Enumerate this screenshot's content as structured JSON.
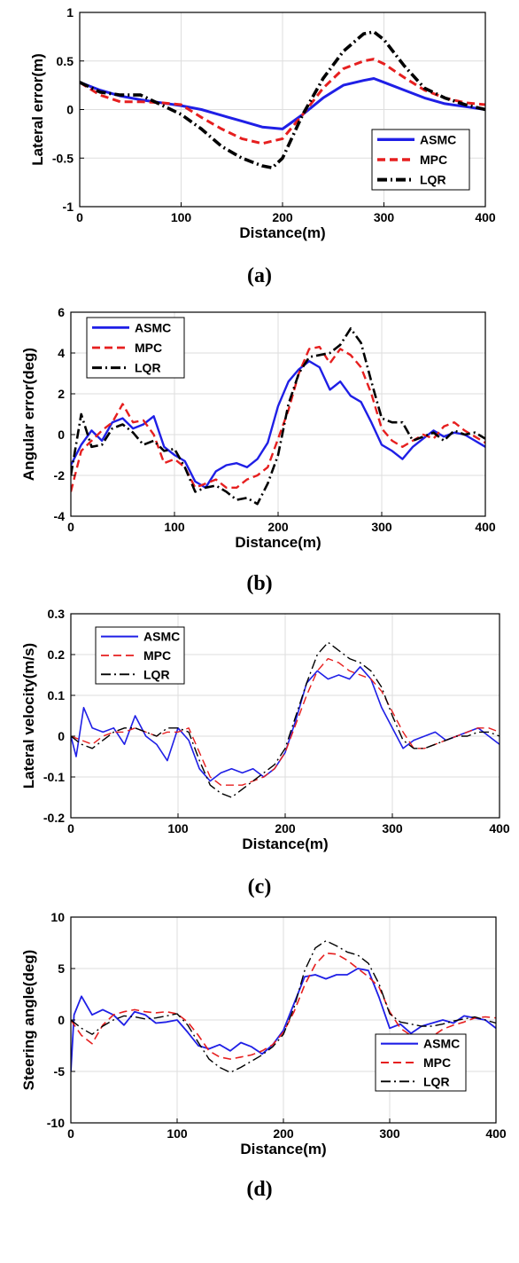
{
  "chart_data": [
    {
      "type": "line",
      "caption": "(a)",
      "xlabel": "Distance(m)",
      "ylabel": "Lateral error(m)",
      "xlim": [
        0,
        400
      ],
      "ylim": [
        -1,
        1
      ],
      "xticks": [
        "0",
        "100",
        "200",
        "300",
        "400"
      ],
      "yticks": [
        "-1",
        "-0.5",
        "0",
        "0.5",
        "1"
      ],
      "xtick_values": [
        0,
        100,
        200,
        300,
        400
      ],
      "ytick_values": [
        -1,
        -0.5,
        0,
        0.5,
        1
      ],
      "legend_position": "bottom-right",
      "series": [
        {
          "name": "ASMC",
          "color": "#1f1fe6",
          "dash": "solid",
          "x": [
            0,
            20,
            40,
            60,
            80,
            100,
            120,
            140,
            160,
            180,
            200,
            220,
            240,
            260,
            280,
            290,
            300,
            320,
            340,
            360,
            380,
            400
          ],
          "y": [
            0.28,
            0.2,
            0.14,
            0.1,
            0.07,
            0.04,
            0.0,
            -0.06,
            -0.12,
            -0.18,
            -0.2,
            -0.05,
            0.12,
            0.25,
            0.3,
            0.32,
            0.28,
            0.2,
            0.12,
            0.06,
            0.03,
            0.0
          ]
        },
        {
          "name": "MPC",
          "color": "#e61f1f",
          "dash": "dashed",
          "x": [
            0,
            20,
            40,
            60,
            80,
            100,
            120,
            140,
            160,
            180,
            200,
            220,
            240,
            260,
            280,
            290,
            300,
            320,
            340,
            360,
            380,
            400
          ],
          "y": [
            0.28,
            0.15,
            0.08,
            0.08,
            0.07,
            0.05,
            -0.08,
            -0.2,
            -0.3,
            -0.35,
            -0.3,
            -0.05,
            0.22,
            0.42,
            0.5,
            0.52,
            0.47,
            0.33,
            0.2,
            0.12,
            0.07,
            0.05
          ]
        },
        {
          "name": "LQR",
          "color": "#000000",
          "dash": "dashdot",
          "x": [
            0,
            20,
            40,
            60,
            80,
            100,
            120,
            140,
            160,
            180,
            190,
            200,
            220,
            240,
            260,
            280,
            290,
            300,
            320,
            340,
            360,
            380,
            400
          ],
          "y": [
            0.28,
            0.18,
            0.15,
            0.15,
            0.05,
            -0.05,
            -0.2,
            -0.38,
            -0.5,
            -0.58,
            -0.6,
            -0.5,
            -0.05,
            0.32,
            0.6,
            0.78,
            0.8,
            0.72,
            0.45,
            0.22,
            0.12,
            0.05,
            0.0
          ]
        }
      ]
    },
    {
      "type": "line",
      "caption": "(b)",
      "xlabel": "Distance(m)",
      "ylabel": "Angular error(deg)",
      "xlim": [
        0,
        400
      ],
      "ylim": [
        -4,
        6
      ],
      "xticks": [
        "0",
        "100",
        "200",
        "300",
        "400"
      ],
      "yticks": [
        "-4",
        "-2",
        "0",
        "2",
        "4",
        "6"
      ],
      "xtick_values": [
        0,
        100,
        200,
        300,
        400
      ],
      "ytick_values": [
        -4,
        -2,
        0,
        2,
        4,
        6
      ],
      "legend_position": "top-left",
      "series": [
        {
          "name": "ASMC",
          "color": "#1f1fe6",
          "dash": "solid",
          "x": [
            0,
            10,
            20,
            30,
            40,
            50,
            60,
            70,
            80,
            90,
            100,
            110,
            120,
            130,
            140,
            150,
            160,
            170,
            180,
            190,
            200,
            210,
            220,
            230,
            240,
            250,
            260,
            270,
            280,
            290,
            300,
            310,
            320,
            330,
            340,
            350,
            360,
            370,
            380,
            390,
            400
          ],
          "y": [
            -1.5,
            -0.5,
            0.2,
            -0.3,
            0.6,
            0.8,
            0.3,
            0.5,
            0.9,
            -0.6,
            -1.0,
            -1.3,
            -2.3,
            -2.6,
            -1.8,
            -1.5,
            -1.4,
            -1.6,
            -1.2,
            -0.4,
            1.4,
            2.6,
            3.2,
            3.6,
            3.3,
            2.2,
            2.6,
            1.9,
            1.6,
            0.6,
            -0.5,
            -0.8,
            -1.2,
            -0.6,
            -0.2,
            0.2,
            -0.1,
            0.1,
            0.0,
            -0.3,
            -0.6
          ]
        },
        {
          "name": "MPC",
          "color": "#e61f1f",
          "dash": "dashed",
          "x": [
            0,
            10,
            20,
            30,
            40,
            50,
            60,
            70,
            80,
            90,
            100,
            110,
            120,
            130,
            140,
            150,
            160,
            170,
            180,
            190,
            200,
            210,
            220,
            230,
            240,
            250,
            260,
            270,
            280,
            290,
            300,
            310,
            320,
            330,
            340,
            350,
            360,
            370,
            380,
            390,
            400
          ],
          "y": [
            -2.8,
            -0.8,
            -0.3,
            0.2,
            0.6,
            1.5,
            0.6,
            0.7,
            0.0,
            -1.4,
            -1.2,
            -1.6,
            -2.6,
            -2.4,
            -2.2,
            -2.6,
            -2.6,
            -2.2,
            -2.0,
            -1.6,
            -0.2,
            1.2,
            3.0,
            4.2,
            4.3,
            3.5,
            4.2,
            3.9,
            3.3,
            2.0,
            0.3,
            -0.3,
            -0.6,
            -0.3,
            0.0,
            -0.2,
            0.4,
            0.6,
            0.2,
            -0.1,
            -0.4
          ]
        },
        {
          "name": "LQR",
          "color": "#000000",
          "dash": "dashdot",
          "x": [
            0,
            10,
            20,
            30,
            40,
            50,
            60,
            70,
            80,
            90,
            100,
            110,
            120,
            130,
            140,
            150,
            160,
            170,
            180,
            190,
            200,
            210,
            220,
            230,
            240,
            250,
            260,
            270,
            280,
            290,
            300,
            310,
            320,
            330,
            340,
            350,
            360,
            370,
            380,
            390,
            400
          ],
          "y": [
            -2.0,
            1.0,
            -0.6,
            -0.5,
            0.3,
            0.5,
            0.1,
            -0.5,
            -0.3,
            -0.8,
            -0.7,
            -1.6,
            -2.8,
            -2.6,
            -2.5,
            -2.8,
            -3.2,
            -3.1,
            -3.4,
            -2.4,
            -1.0,
            1.5,
            3.0,
            3.8,
            3.9,
            4.0,
            4.4,
            5.2,
            4.5,
            2.6,
            0.8,
            0.6,
            0.6,
            -0.3,
            -0.1,
            0.1,
            -0.3,
            0.2,
            0.0,
            0.1,
            -0.2
          ]
        }
      ]
    },
    {
      "type": "line",
      "caption": "(c)",
      "xlabel": "Distance(m)",
      "ylabel": "Lateral velocity(m/s)",
      "xlim": [
        0,
        400
      ],
      "ylim": [
        -0.2,
        0.3
      ],
      "xticks": [
        "0",
        "100",
        "200",
        "300",
        "400"
      ],
      "yticks": [
        "-0.2",
        "-0.1",
        "0",
        "0.1",
        "0.2",
        "0.3"
      ],
      "xtick_values": [
        0,
        100,
        200,
        300,
        400
      ],
      "ytick_values": [
        -0.2,
        -0.1,
        0,
        0.1,
        0.2,
        0.3
      ],
      "legend_position": "top-left",
      "series": [
        {
          "name": "ASMC",
          "color": "#1f1fe6",
          "dash": "solid",
          "x": [
            0,
            5,
            12,
            20,
            30,
            40,
            50,
            60,
            70,
            80,
            90,
            100,
            110,
            120,
            130,
            140,
            150,
            160,
            170,
            180,
            190,
            200,
            210,
            220,
            230,
            240,
            250,
            260,
            270,
            280,
            290,
            300,
            310,
            320,
            330,
            340,
            350,
            360,
            370,
            380,
            390,
            400
          ],
          "y": [
            0.0,
            -0.05,
            0.07,
            0.02,
            0.01,
            0.02,
            -0.02,
            0.05,
            0.0,
            -0.02,
            -0.06,
            0.02,
            -0.01,
            -0.08,
            -0.11,
            -0.09,
            -0.08,
            -0.09,
            -0.08,
            -0.1,
            -0.08,
            -0.04,
            0.04,
            0.13,
            0.16,
            0.14,
            0.15,
            0.14,
            0.17,
            0.14,
            0.07,
            0.02,
            -0.03,
            -0.01,
            0.0,
            0.01,
            -0.01,
            0.0,
            0.01,
            0.02,
            0.0,
            -0.02
          ]
        },
        {
          "name": "MPC",
          "color": "#e61f1f",
          "dash": "dashed",
          "x": [
            0,
            10,
            20,
            30,
            40,
            50,
            60,
            70,
            80,
            90,
            100,
            110,
            120,
            130,
            140,
            150,
            160,
            170,
            180,
            190,
            200,
            210,
            220,
            230,
            240,
            250,
            260,
            270,
            280,
            290,
            300,
            310,
            320,
            330,
            340,
            350,
            360,
            370,
            380,
            390,
            400
          ],
          "y": [
            0.0,
            -0.01,
            -0.02,
            0.0,
            0.01,
            0.01,
            0.02,
            0.01,
            0.0,
            0.01,
            0.01,
            0.02,
            -0.04,
            -0.1,
            -0.12,
            -0.12,
            -0.12,
            -0.11,
            -0.1,
            -0.08,
            -0.04,
            0.03,
            0.1,
            0.16,
            0.19,
            0.18,
            0.16,
            0.15,
            0.14,
            0.11,
            0.06,
            0.01,
            -0.03,
            -0.03,
            -0.02,
            -0.01,
            0.0,
            0.01,
            0.02,
            0.02,
            0.01
          ]
        },
        {
          "name": "LQR",
          "color": "#000000",
          "dash": "dashdot",
          "x": [
            0,
            10,
            20,
            30,
            40,
            50,
            60,
            70,
            80,
            90,
            100,
            110,
            120,
            130,
            140,
            150,
            160,
            170,
            180,
            190,
            200,
            210,
            220,
            230,
            240,
            250,
            260,
            270,
            280,
            290,
            300,
            310,
            320,
            330,
            340,
            350,
            360,
            370,
            380,
            390,
            400
          ],
          "y": [
            0.0,
            -0.02,
            -0.03,
            -0.01,
            0.01,
            0.02,
            0.02,
            0.01,
            0.0,
            0.02,
            0.02,
            0.01,
            -0.06,
            -0.12,
            -0.14,
            -0.15,
            -0.13,
            -0.11,
            -0.09,
            -0.07,
            -0.03,
            0.05,
            0.13,
            0.2,
            0.23,
            0.21,
            0.19,
            0.18,
            0.16,
            0.12,
            0.05,
            -0.01,
            -0.03,
            -0.03,
            -0.02,
            -0.01,
            0.0,
            0.0,
            0.01,
            0.01,
            0.0
          ]
        }
      ]
    },
    {
      "type": "line",
      "caption": "(d)",
      "xlabel": "Distance(m)",
      "ylabel": "Steering angle(deg)",
      "xlim": [
        0,
        400
      ],
      "ylim": [
        -10,
        10
      ],
      "xticks": [
        "0",
        "100",
        "200",
        "300",
        "400"
      ],
      "yticks": [
        "-10",
        "-5",
        "0",
        "5",
        "10"
      ],
      "xtick_values": [
        0,
        100,
        200,
        300,
        400
      ],
      "ytick_values": [
        -10,
        -5,
        0,
        5,
        10
      ],
      "legend_position": "bottom-right",
      "series": [
        {
          "name": "ASMC",
          "color": "#1f1fe6",
          "dash": "solid",
          "x": [
            0,
            3,
            10,
            20,
            30,
            40,
            50,
            60,
            70,
            80,
            90,
            100,
            110,
            120,
            130,
            140,
            150,
            160,
            170,
            180,
            190,
            200,
            210,
            220,
            230,
            240,
            250,
            260,
            270,
            280,
            290,
            300,
            310,
            320,
            330,
            340,
            350,
            360,
            370,
            380,
            390,
            400
          ],
          "y": [
            -5.0,
            0.5,
            2.3,
            0.5,
            1.0,
            0.5,
            -0.5,
            0.8,
            0.5,
            -0.3,
            -0.2,
            0.0,
            -1.2,
            -2.5,
            -2.8,
            -2.4,
            -3.0,
            -2.2,
            -2.6,
            -3.3,
            -2.4,
            -1.0,
            1.6,
            4.2,
            4.4,
            4.0,
            4.4,
            4.4,
            5.0,
            4.8,
            2.2,
            -0.8,
            -0.4,
            -1.3,
            -0.6,
            -0.3,
            0.0,
            -0.3,
            0.4,
            0.2,
            0.0,
            -0.8
          ]
        },
        {
          "name": "MPC",
          "color": "#e61f1f",
          "dash": "dashed",
          "x": [
            0,
            10,
            20,
            30,
            40,
            50,
            60,
            70,
            80,
            90,
            100,
            110,
            120,
            130,
            140,
            150,
            160,
            170,
            180,
            190,
            200,
            210,
            220,
            230,
            240,
            250,
            260,
            270,
            280,
            290,
            300,
            310,
            320,
            330,
            340,
            350,
            360,
            370,
            380,
            390,
            400
          ],
          "y": [
            0.0,
            -1.5,
            -2.3,
            -0.5,
            0.5,
            0.8,
            1.0,
            0.8,
            0.7,
            0.8,
            0.6,
            -0.2,
            -1.5,
            -3.0,
            -3.6,
            -3.8,
            -3.6,
            -3.4,
            -3.0,
            -2.4,
            -1.2,
            0.8,
            3.4,
            5.4,
            6.5,
            6.4,
            5.8,
            5.0,
            4.2,
            3.2,
            0.8,
            -0.8,
            -1.5,
            -1.9,
            -1.6,
            -0.9,
            -0.5,
            -0.2,
            0.2,
            0.3,
            0.2
          ]
        },
        {
          "name": "LQR",
          "color": "#000000",
          "dash": "dashdot",
          "x": [
            0,
            10,
            20,
            30,
            40,
            50,
            60,
            70,
            80,
            90,
            100,
            110,
            120,
            130,
            140,
            150,
            160,
            170,
            180,
            190,
            200,
            210,
            220,
            230,
            240,
            250,
            260,
            270,
            280,
            290,
            300,
            310,
            320,
            330,
            340,
            350,
            360,
            370,
            380,
            390,
            400
          ],
          "y": [
            0.0,
            -0.8,
            -1.4,
            -0.6,
            0.0,
            0.4,
            0.3,
            0.1,
            0.2,
            0.4,
            0.6,
            -0.5,
            -2.2,
            -3.8,
            -4.6,
            -5.1,
            -4.6,
            -4.0,
            -3.4,
            -2.6,
            -1.4,
            1.2,
            4.8,
            7.0,
            7.7,
            7.2,
            6.6,
            6.3,
            5.5,
            3.5,
            0.6,
            -0.2,
            -0.4,
            -0.6,
            -0.6,
            -0.4,
            -0.1,
            0.1,
            0.3,
            0.0,
            -0.3
          ]
        }
      ]
    }
  ]
}
